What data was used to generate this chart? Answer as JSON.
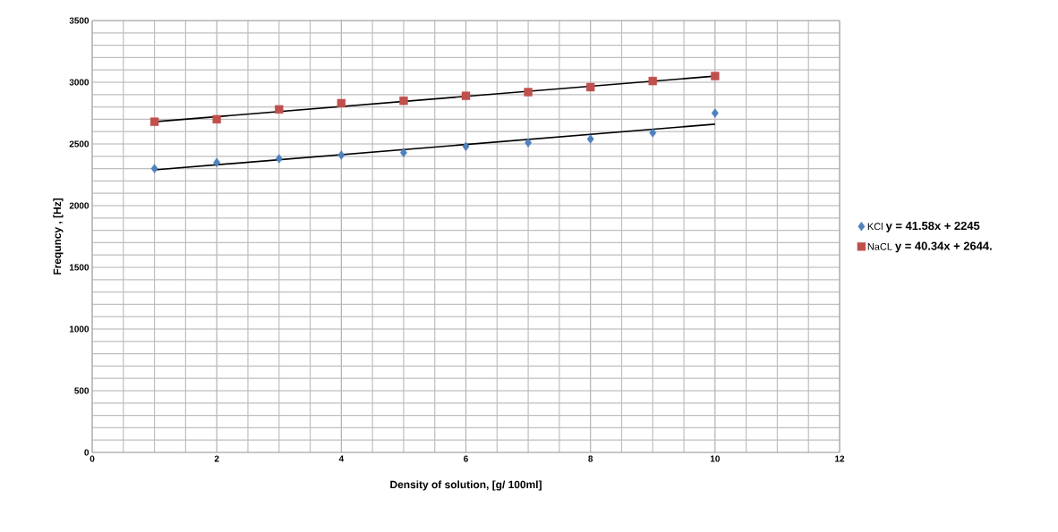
{
  "chart_data": {
    "type": "scatter",
    "xlabel": "Density of solution, [g/ 100ml]",
    "ylabel": "Frequncy , [Hz]",
    "xlim": [
      0,
      12
    ],
    "xticks": [
      0,
      2,
      4,
      6,
      8,
      10,
      12
    ],
    "ylim": [
      0,
      3500
    ],
    "yticks": [
      0,
      500,
      1000,
      1500,
      2000,
      2500,
      3000,
      3500
    ],
    "grid": true,
    "legend": "right",
    "annotations": [
      "y = 41.58x + 2245",
      "y = 40.34x + 2644."
    ],
    "series": [
      {
        "name": "KCl",
        "color": "#4f81bd",
        "marker": "diamond",
        "x": [
          1,
          2,
          3,
          4,
          5,
          6,
          7,
          8,
          9,
          10
        ],
        "values": [
          2300,
          2350,
          2380,
          2410,
          2430,
          2480,
          2510,
          2540,
          2590,
          2750
        ]
      },
      {
        "name": "NaCL",
        "color": "#c0504d",
        "marker": "square",
        "x": [
          1,
          2,
          3,
          4,
          5,
          6,
          7,
          8,
          9,
          10
        ],
        "values": [
          2680,
          2700,
          2780,
          2830,
          2850,
          2890,
          2920,
          2960,
          3010,
          3050
        ]
      },
      {
        "type": "line",
        "color": "#000000",
        "marker": "none",
        "x": [
          1,
          10
        ],
        "values": [
          2290,
          2660
        ]
      },
      {
        "type": "line",
        "color": "#000000",
        "marker": "none",
        "x": [
          1,
          10
        ],
        "values": [
          2680,
          3050
        ]
      }
    ]
  }
}
